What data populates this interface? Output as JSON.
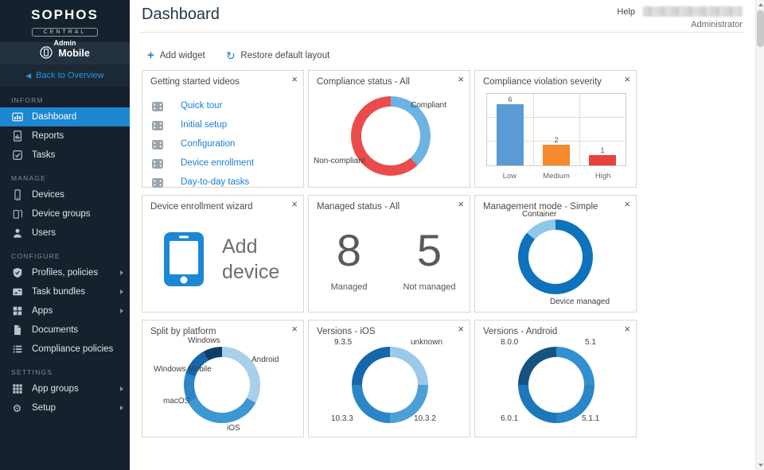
{
  "brand": {
    "name": "SOPHOS",
    "product": "CENTRAL",
    "role": "Admin"
  },
  "sidebar": {
    "context": "Mobile",
    "back_label": "Back to Overview",
    "sections": [
      {
        "label": "INFORM",
        "items": [
          {
            "label": "Dashboard"
          },
          {
            "label": "Reports"
          },
          {
            "label": "Tasks"
          }
        ]
      },
      {
        "label": "MANAGE",
        "items": [
          {
            "label": "Devices"
          },
          {
            "label": "Device groups"
          },
          {
            "label": "Users"
          }
        ]
      },
      {
        "label": "CONFIGURE",
        "items": [
          {
            "label": "Profiles, policies"
          },
          {
            "label": "Task bundles"
          },
          {
            "label": "Apps"
          },
          {
            "label": "Documents"
          },
          {
            "label": "Compliance policies"
          }
        ]
      },
      {
        "label": "SETTINGS",
        "items": [
          {
            "label": "App groups"
          },
          {
            "label": "Setup"
          }
        ]
      }
    ]
  },
  "header": {
    "title": "Dashboard",
    "help": "Help",
    "user_role": "Administrator"
  },
  "toolbar": {
    "add_widget": "Add widget",
    "restore_layout": "Restore default layout"
  },
  "icons": {
    "close": "×",
    "plus": "+",
    "restore": "↺",
    "back_arrow": "◀",
    "gear": "⚙"
  },
  "widgets": {
    "getting_started": {
      "title": "Getting started videos",
      "links": [
        "Quick tour",
        "Initial setup",
        "Configuration",
        "Device enrollment",
        "Day-to-day tasks"
      ]
    },
    "enrollment_wizard": {
      "title": "Device enrollment wizard",
      "cta": "Add device"
    }
  },
  "chart_data": [
    {
      "id": "compliance_status",
      "type": "donut",
      "title": "Compliance status - All",
      "legend_position": "on-chart",
      "segments": [
        {
          "label": "Compliant",
          "value": 5,
          "color": "#6cb3e3",
          "start": 0,
          "end": 138
        },
        {
          "label": "Non-compliant",
          "value": 8,
          "color": "#ea4c4c",
          "start": 138,
          "end": 360
        }
      ]
    },
    {
      "id": "violation_severity",
      "type": "bar",
      "title": "Compliance violation severity",
      "categories": [
        "Low",
        "Medium",
        "High"
      ],
      "values": [
        6,
        2,
        1
      ],
      "colors": [
        "#5b9bd5",
        "#f5892d",
        "#e8413c"
      ],
      "ylim": [
        0,
        7
      ],
      "grid": true
    },
    {
      "id": "managed_status",
      "type": "kpi",
      "title": "Managed status - All",
      "items": [
        {
          "label": "Managed",
          "value": 8
        },
        {
          "label": "Not managed",
          "value": 5
        }
      ]
    },
    {
      "id": "management_mode",
      "type": "donut",
      "title": "Management mode - Simple",
      "segments": [
        {
          "label": "Device managed",
          "color": "#0f72bd",
          "start": 0,
          "end": 310
        },
        {
          "label": "Container",
          "color": "#8fc6ea",
          "start": 310,
          "end": 360
        }
      ]
    },
    {
      "id": "split_by_platform",
      "type": "donut",
      "title": "Split by platform",
      "segments": [
        {
          "label": "Android",
          "color": "#a9cfea",
          "start": 0,
          "end": 118
        },
        {
          "label": "iOS",
          "color": "#3d97d3",
          "start": 118,
          "end": 243
        },
        {
          "label": "macOS",
          "color": "#2a86c6",
          "start": 243,
          "end": 288
        },
        {
          "label": "Windows Mobile",
          "color": "#1566ab",
          "start": 288,
          "end": 331
        },
        {
          "label": "Windows",
          "color": "#0d3f66",
          "start": 331,
          "end": 360
        }
      ]
    },
    {
      "id": "versions_ios",
      "type": "donut",
      "title": "Versions - iOS",
      "segments": [
        {
          "label": "unknown",
          "color": "#9bc9e9",
          "start": 0,
          "end": 90
        },
        {
          "label": "10.3.2",
          "color": "#4d9fd6",
          "start": 90,
          "end": 180
        },
        {
          "label": "10.3.3",
          "color": "#2a86c6",
          "start": 180,
          "end": 270
        },
        {
          "label": "9.3.5",
          "color": "#1566ab",
          "start": 270,
          "end": 360
        }
      ]
    },
    {
      "id": "versions_android",
      "type": "donut",
      "title": "Versions - Android",
      "segments": [
        {
          "label": "5.1",
          "color": "#3191cf",
          "start": 0,
          "end": 90
        },
        {
          "label": "5.1.1",
          "color": "#2a86c6",
          "start": 90,
          "end": 180
        },
        {
          "label": "6.0.1",
          "color": "#1d77bb",
          "start": 180,
          "end": 270
        },
        {
          "label": "8.0.0",
          "color": "#155481",
          "start": 270,
          "end": 360
        }
      ]
    }
  ]
}
